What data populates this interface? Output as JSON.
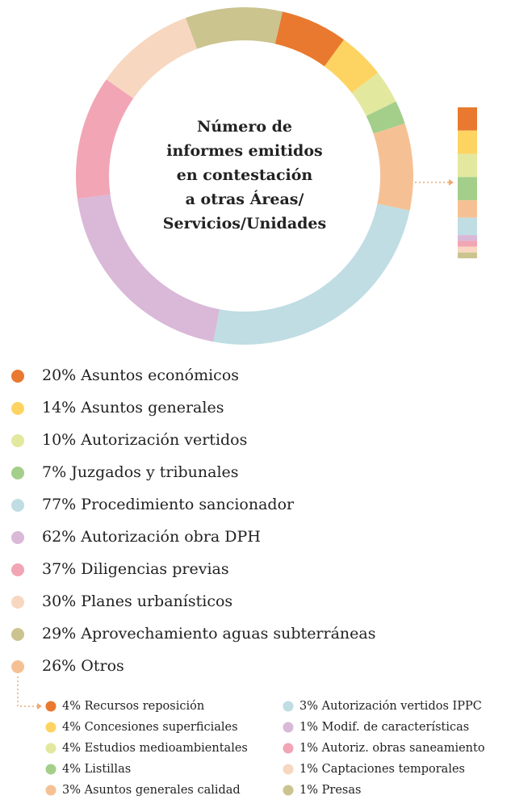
{
  "chart_data": [
    {
      "type": "donut",
      "title": [
        "Número de",
        "informes emitidos",
        "en contestación",
        "a otras Áreas/",
        "Servicios/Unidades"
      ],
      "categories": [
        "Asuntos económicos",
        "Asuntos generales",
        "Autorización vertidos",
        "Juzgados y tribunales",
        "Otros",
        "Procedimiento sancionador",
        "Autorización obra DPH",
        "Diligencias previas",
        "Planes urbanísticos",
        "Aprovechamiento aguas subterráneas"
      ],
      "values": [
        20,
        14,
        10,
        7,
        26,
        77,
        62,
        37,
        30,
        29
      ],
      "value_labels": [
        "20%",
        "14%",
        "10%",
        "7%",
        "26%",
        "77%",
        "62%",
        "37%",
        "30%",
        "29%"
      ],
      "colors": [
        "#e8792f",
        "#fdd462",
        "#e3e89f",
        "#a3cf8a",
        "#f5c194",
        "#bfdde3",
        "#d9b8d8",
        "#f2a5b4",
        "#f7d7c0",
        "#cbc48f"
      ]
    },
    {
      "type": "stacked-bar",
      "categories": [
        "Recursos reposición",
        "Concesiones superficiales",
        "Estudios medioambientales",
        "Listillas",
        "Asuntos generales calidad",
        "Autorización vertidos IPPC",
        "Modif. de características",
        "Autoriz. obras saneamiento",
        "Captaciones temporales",
        "Presas"
      ],
      "values": [
        4,
        4,
        4,
        4,
        3,
        3,
        1,
        1,
        1,
        1
      ],
      "value_labels": [
        "4%",
        "4%",
        "4%",
        "4%",
        "3%",
        "3%",
        "1%",
        "1%",
        "1%",
        "1%"
      ],
      "colors": [
        "#e8792f",
        "#fdd462",
        "#e3e89f",
        "#a3cf8a",
        "#f5c194",
        "#bfdde3",
        "#d9b8d8",
        "#f2a5b4",
        "#f7d7c0",
        "#cbc48f"
      ]
    }
  ]
}
